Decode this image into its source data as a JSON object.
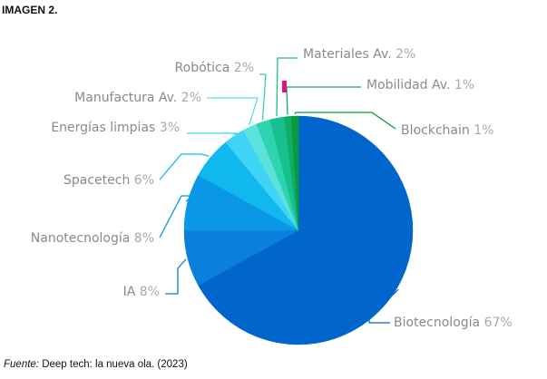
{
  "figure": {
    "title": "IMAGEN 2.",
    "source_label": "Fuente:",
    "source_text": "Deep tech: la nueva ola. (2023)"
  },
  "chart_data": {
    "type": "pie",
    "title": "",
    "start_angle_deg": 0,
    "direction": "clockwise",
    "legend": "none (leader-line labels)",
    "slices": [
      {
        "label": "Biotecnología",
        "value": 67,
        "value_label": "67%",
        "color": "#0066cc"
      },
      {
        "label": "IA",
        "value": 8,
        "value_label": "8%",
        "color": "#0a7fdc"
      },
      {
        "label": "Nanotecnología",
        "value": 8,
        "value_label": "8%",
        "color": "#0a97e6"
      },
      {
        "label": "Spacetech",
        "value": 6,
        "value_label": "6%",
        "color": "#10b8ee"
      },
      {
        "label": "Energías limpias",
        "value": 3,
        "value_label": "3%",
        "color": "#3fd3f5"
      },
      {
        "label": "Manufactura Av.",
        "value": 2,
        "value_label": "2%",
        "color": "#5ce2dc"
      },
      {
        "label": "Robótica",
        "value": 2,
        "value_label": "2%",
        "color": "#2ed3b0"
      },
      {
        "label": "Materiales Av.",
        "value": 2,
        "value_label": "2%",
        "color": "#17c08f"
      },
      {
        "label": "Mobilidad Av.",
        "value": 1,
        "value_label": "1%",
        "color": "#0fae68"
      },
      {
        "label": "Blockchain",
        "value": 1,
        "value_label": "1%",
        "color": "#0a9a3c"
      }
    ],
    "annotation_marker_color": "#e0107f"
  }
}
